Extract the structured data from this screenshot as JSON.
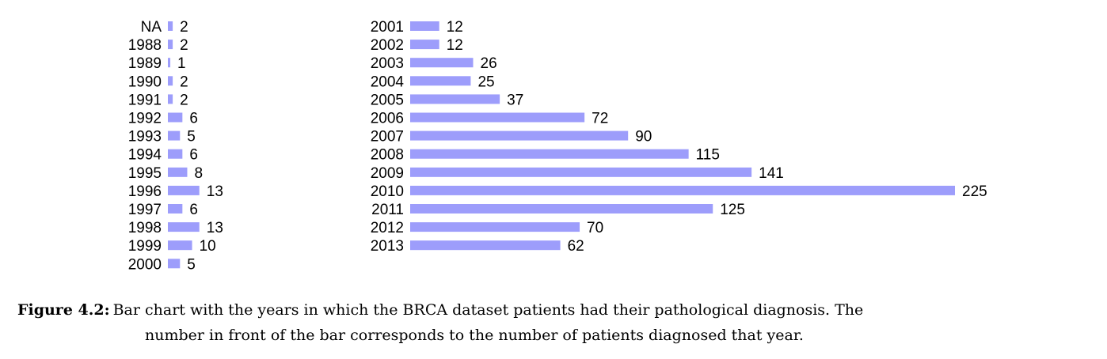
{
  "chart_data": [
    {
      "type": "bar",
      "orientation": "horizontal",
      "categories": [
        "NA",
        "1988",
        "1989",
        "1990",
        "1991",
        "1992",
        "1993",
        "1994",
        "1995",
        "1996",
        "1997",
        "1998",
        "1999",
        "2000"
      ],
      "values": [
        2,
        2,
        1,
        2,
        2,
        6,
        5,
        6,
        8,
        13,
        6,
        13,
        10,
        5
      ],
      "title": "",
      "xlabel": "",
      "ylabel": "",
      "xlim": [
        0,
        225
      ],
      "grid": false,
      "bar_color": "#9d9dfb"
    },
    {
      "type": "bar",
      "orientation": "horizontal",
      "categories": [
        "2001",
        "2002",
        "2003",
        "2004",
        "2005",
        "2006",
        "2007",
        "2008",
        "2009",
        "2010",
        "2011",
        "2012",
        "2013"
      ],
      "values": [
        12,
        12,
        26,
        25,
        37,
        72,
        90,
        115,
        141,
        225,
        125,
        70,
        62
      ],
      "title": "",
      "xlabel": "",
      "ylabel": "",
      "xlim": [
        0,
        225
      ],
      "grid": false,
      "bar_color": "#9d9dfb"
    }
  ],
  "caption": {
    "label": "Figure 4.2:",
    "line1": "Bar chart with the years in which the BRCA dataset patients had their pathological diagnosis. The",
    "line2": "number in front of the bar corresponds to the number of patients diagnosed that year."
  }
}
